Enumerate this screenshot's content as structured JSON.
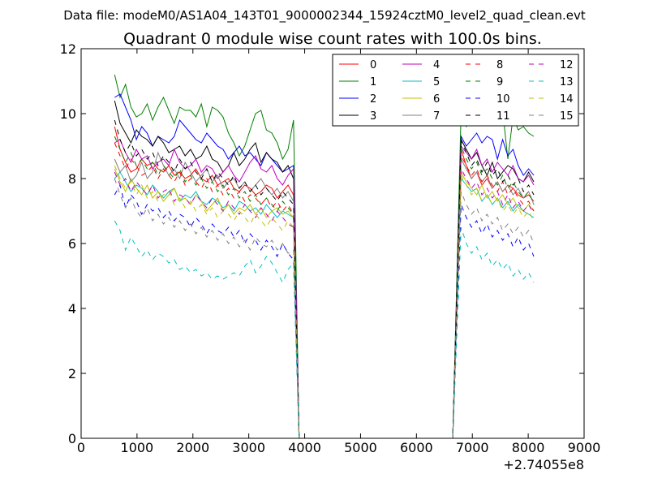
{
  "chart_data": {
    "type": "line",
    "suptitle": "Data file: modeM0/AS1A04_143T01_9000002344_15924cztM0_level2_quad_clean.evt",
    "title": "Quadrant 0 module wise count rates with 100.0s bins.",
    "xlabel": "",
    "ylabel": "",
    "x_offset_label": "+2.74055e8",
    "xlim": [
      0,
      9000
    ],
    "ylim": [
      0,
      12
    ],
    "xticks": [
      0,
      1000,
      2000,
      3000,
      4000,
      5000,
      6000,
      7000,
      8000,
      9000
    ],
    "yticks": [
      0,
      2,
      4,
      6,
      8,
      10,
      12
    ],
    "xtick_labels": [
      "0",
      "1000",
      "2000",
      "3000",
      "4000",
      "5000",
      "6000",
      "7000",
      "8000",
      "9000"
    ],
    "ytick_labels": [
      "0",
      "2",
      "4",
      "6",
      "8",
      "10",
      "12"
    ],
    "legend_position": "top-right",
    "legend_columns": 4,
    "series": [
      {
        "name": "0",
        "color": "#ff0000",
        "dash": "solid",
        "seg1": [
          9.6,
          8.9,
          8.5,
          8.2,
          8.3,
          8.6,
          8.4,
          8.5,
          8.3,
          8.2,
          8.4,
          8.1,
          8.2,
          8.0,
          8.1,
          8.3,
          8.0,
          7.9,
          8.1,
          7.8,
          7.9,
          8.0,
          7.7,
          7.6,
          7.8,
          7.7,
          7.5,
          7.6,
          7.8,
          7.7,
          7.4,
          7.6,
          7.8,
          7.5
        ],
        "seg2": [
          8.9,
          8.4,
          8.0,
          8.2,
          7.8,
          8.0,
          7.7,
          7.9,
          7.6,
          7.8,
          7.7,
          7.5,
          7.4,
          7.5,
          7.3
        ]
      },
      {
        "name": "1",
        "color": "#008000",
        "dash": "solid",
        "seg1": [
          11.2,
          10.5,
          10.9,
          10.2,
          9.9,
          10.0,
          10.3,
          9.8,
          10.2,
          10.5,
          10.1,
          9.7,
          10.2,
          10.1,
          10.1,
          9.9,
          10.3,
          9.6,
          10.2,
          10.1,
          9.9,
          9.4,
          9.1,
          8.7,
          9.0,
          9.5,
          10.0,
          10.1,
          9.5,
          9.4,
          9.1,
          8.6,
          8.9,
          9.8
        ],
        "seg2": [
          10.1,
          9.6,
          9.9,
          10.2,
          9.7,
          10.2,
          10.0,
          10.3,
          10.1,
          8.6,
          9.9,
          9.5,
          9.6,
          9.4,
          9.3
        ]
      },
      {
        "name": "2",
        "color": "#0000ff",
        "dash": "solid",
        "seg1": [
          10.5,
          10.6,
          10.2,
          9.8,
          9.2,
          9.6,
          9.4,
          9.0,
          9.3,
          9.2,
          9.1,
          9.3,
          9.8,
          9.6,
          9.4,
          9.2,
          9.1,
          9.4,
          9.2,
          9.0,
          8.9,
          8.6,
          8.8,
          9.0,
          8.7,
          8.8,
          8.6,
          8.4,
          8.8,
          8.6,
          8.4,
          8.2,
          8.3,
          8.4
        ],
        "seg2": [
          9.3,
          9.0,
          9.2,
          9.4,
          9.1,
          9.3,
          9.2,
          8.6,
          9.2,
          8.7,
          8.9,
          8.4,
          8.1,
          8.3,
          8.1
        ]
      },
      {
        "name": "3",
        "color": "#000000",
        "dash": "solid",
        "seg1": [
          10.4,
          9.7,
          9.4,
          9.1,
          9.5,
          9.3,
          9.2,
          9.0,
          9.3,
          9.1,
          8.8,
          8.9,
          9.0,
          8.7,
          8.9,
          8.6,
          8.7,
          9.0,
          8.6,
          8.5,
          8.2,
          8.4,
          8.8,
          8.4,
          8.6,
          8.9,
          9.1,
          8.5,
          8.8,
          8.6,
          8.5,
          8.2,
          8.4,
          8.0
        ],
        "seg2": [
          9.2,
          8.9,
          8.6,
          8.8,
          8.4,
          8.1,
          8.5,
          8.0,
          8.2,
          8.4,
          8.3,
          8.0,
          7.9,
          8.2,
          7.9
        ]
      },
      {
        "name": "4",
        "color": "#bf00bf",
        "dash": "solid",
        "seg1": [
          9.1,
          9.2,
          8.8,
          8.5,
          8.9,
          8.6,
          8.7,
          8.3,
          8.5,
          8.6,
          8.4,
          8.9,
          8.5,
          8.3,
          8.4,
          8.6,
          8.2,
          8.4,
          8.3,
          8.0,
          8.2,
          8.4,
          8.1,
          7.9,
          8.2,
          8.5,
          8.7,
          8.3,
          8.2,
          8.4,
          8.0,
          7.8,
          8.1,
          8.3
        ],
        "seg2": [
          9.0,
          8.8,
          8.6,
          8.9,
          8.4,
          8.6,
          8.2,
          8.5,
          8.3,
          8.1,
          8.4,
          8.0,
          7.9,
          8.1,
          7.8
        ]
      },
      {
        "name": "5",
        "color": "#00bfbf",
        "dash": "solid",
        "seg1": [
          8.0,
          8.2,
          7.9,
          7.6,
          7.8,
          7.7,
          7.5,
          7.8,
          7.6,
          7.4,
          7.6,
          7.7,
          7.3,
          7.5,
          7.4,
          7.6,
          7.3,
          7.2,
          7.4,
          7.3,
          7.1,
          7.2,
          7.0,
          7.3,
          7.2,
          7.0,
          7.1,
          6.9,
          7.2,
          7.0,
          6.8,
          7.0,
          6.9,
          6.8
        ],
        "seg2": [
          8.0,
          7.8,
          7.6,
          7.7,
          7.3,
          7.5,
          7.2,
          7.4,
          7.1,
          7.3,
          7.0,
          7.2,
          7.0,
          6.9,
          6.8
        ]
      },
      {
        "name": "6",
        "color": "#bfbf00",
        "dash": "solid",
        "seg1": [
          8.3,
          7.9,
          7.6,
          8.0,
          7.7,
          7.5,
          7.8,
          7.4,
          7.6,
          7.3,
          7.5,
          7.7,
          7.3,
          7.4,
          7.2,
          7.5,
          7.3,
          7.0,
          7.2,
          7.4,
          7.0,
          7.2,
          6.9,
          7.1,
          7.0,
          7.2,
          6.9,
          7.1,
          6.8,
          7.0,
          7.1,
          6.9,
          7.0,
          6.8
        ],
        "seg2": [
          8.2,
          7.9,
          7.7,
          7.5,
          7.8,
          7.4,
          7.6,
          7.3,
          7.5,
          7.2,
          7.4,
          7.1,
          7.0,
          7.2,
          7.0
        ]
      },
      {
        "name": "7",
        "color": "#808080",
        "dash": "solid",
        "seg1": [
          8.6,
          8.2,
          8.4,
          7.9,
          8.1,
          8.5,
          8.0,
          8.2,
          8.8,
          8.4,
          8.1,
          8.3,
          8.0,
          8.5,
          8.2,
          7.9,
          8.1,
          8.3,
          7.9,
          8.1,
          7.7,
          7.9,
          8.0,
          7.7,
          7.9,
          7.6,
          7.8,
          8.0,
          7.7,
          7.5,
          7.7,
          7.4,
          7.6,
          7.3
        ],
        "seg2": [
          8.6,
          8.3,
          8.0,
          8.2,
          7.9,
          8.1,
          7.7,
          7.9,
          7.6,
          7.8,
          7.5,
          7.7,
          7.4,
          7.6,
          7.2
        ]
      },
      {
        "name": "8",
        "color": "#ff0000",
        "dash": "dashed",
        "seg1": [
          9.1,
          8.7,
          8.3,
          8.6,
          8.4,
          8.1,
          8.2,
          8.4,
          8.0,
          8.3,
          8.1,
          7.9,
          8.2,
          7.8,
          8.0,
          7.9,
          7.7,
          8.0,
          7.6,
          7.8,
          7.5,
          7.7,
          7.4,
          7.6,
          7.3,
          7.5,
          7.4,
          7.2,
          7.4,
          7.1,
          7.3,
          7.0,
          7.2,
          6.9
        ],
        "seg2": [
          8.7,
          8.4,
          8.1,
          8.3,
          7.9,
          8.1,
          7.8,
          7.6,
          7.9,
          7.5,
          7.7,
          7.4,
          7.2,
          7.3,
          7.0
        ]
      },
      {
        "name": "9",
        "color": "#008000",
        "dash": "dashed",
        "seg1": [
          9.3,
          8.9,
          8.5,
          8.8,
          8.4,
          8.6,
          8.3,
          8.5,
          8.1,
          8.4,
          8.2,
          8.0,
          8.3,
          7.9,
          8.1,
          7.8,
          8.0,
          7.7,
          7.9,
          7.6,
          7.8,
          7.5,
          7.7,
          7.4,
          7.6,
          7.3,
          7.5,
          7.2,
          7.4,
          7.2,
          7.0,
          7.3,
          7.1,
          6.9
        ],
        "seg2": [
          9.0,
          8.6,
          8.3,
          8.5,
          8.1,
          8.3,
          8.0,
          7.8,
          8.1,
          7.7,
          7.9,
          7.6,
          7.4,
          7.6,
          7.2
        ]
      },
      {
        "name": "10",
        "color": "#0000ff",
        "dash": "dashed",
        "seg1": [
          7.5,
          7.8,
          7.1,
          7.5,
          7.3,
          6.9,
          7.2,
          7.0,
          7.1,
          6.8,
          7.0,
          6.7,
          6.9,
          6.8,
          6.5,
          6.8,
          6.6,
          6.3,
          6.6,
          6.4,
          6.3,
          6.5,
          6.2,
          6.4,
          6.0,
          6.3,
          6.1,
          5.8,
          6.1,
          5.9,
          5.6,
          6.0,
          5.7,
          5.5
        ],
        "seg2": [
          7.2,
          6.8,
          6.5,
          6.7,
          6.3,
          6.6,
          6.2,
          6.4,
          6.1,
          6.3,
          5.9,
          6.2,
          5.8,
          6.0,
          5.6
        ]
      },
      {
        "name": "11",
        "color": "#000000",
        "dash": "dashed",
        "seg1": [
          9.8,
          9.2,
          8.8,
          9.1,
          8.7,
          8.9,
          8.6,
          8.8,
          8.4,
          8.7,
          8.5,
          8.2,
          8.6,
          8.3,
          8.5,
          8.2,
          8.0,
          8.3,
          7.9,
          8.2,
          8.0,
          7.8,
          8.1,
          7.7,
          7.9,
          7.6,
          7.8,
          7.5,
          7.7,
          7.5,
          7.3,
          7.6,
          7.4,
          7.2
        ],
        "seg2": [
          9.2,
          8.8,
          8.4,
          8.6,
          8.2,
          8.5,
          8.1,
          8.3,
          7.9,
          8.1,
          7.8,
          8.0,
          7.6,
          7.8,
          7.5
        ]
      },
      {
        "name": "12",
        "color": "#bf00bf",
        "dash": "dashed",
        "seg1": [
          8.2,
          7.8,
          8.0,
          7.6,
          7.9,
          7.7,
          7.5,
          7.8,
          7.4,
          7.6,
          7.7,
          7.3,
          7.5,
          7.4,
          7.2,
          7.5,
          7.3,
          7.1,
          7.4,
          7.2,
          7.0,
          7.3,
          7.1,
          6.9,
          7.2,
          7.0,
          6.8,
          7.1,
          6.9,
          6.7,
          7.0,
          6.8,
          6.6,
          6.5
        ],
        "seg2": [
          8.3,
          8.0,
          7.7,
          7.9,
          7.5,
          7.7,
          7.4,
          7.6,
          7.2,
          7.5,
          7.1,
          7.3,
          7.0,
          7.2,
          6.9
        ]
      },
      {
        "name": "13",
        "color": "#00bfbf",
        "dash": "dashed",
        "seg1": [
          6.7,
          6.4,
          5.8,
          6.2,
          5.9,
          5.6,
          5.8,
          5.5,
          5.7,
          5.6,
          5.4,
          5.5,
          5.2,
          5.3,
          5.1,
          5.2,
          5.0,
          5.1,
          4.9,
          5.0,
          4.9,
          5.0,
          5.1,
          5.0,
          5.3,
          5.5,
          5.1,
          5.3,
          5.6,
          5.4,
          5.1,
          4.8,
          5.2,
          5.4
        ],
        "seg2": [
          6.5,
          6.0,
          5.7,
          5.9,
          5.5,
          5.7,
          5.3,
          5.5,
          5.2,
          5.4,
          5.0,
          5.2,
          4.9,
          5.1,
          4.8
        ]
      },
      {
        "name": "14",
        "color": "#bfbf00",
        "dash": "dashed",
        "seg1": [
          8.4,
          8.0,
          7.7,
          7.9,
          7.5,
          7.8,
          7.4,
          7.6,
          7.3,
          7.5,
          7.6,
          7.2,
          7.4,
          7.1,
          7.3,
          7.0,
          7.2,
          6.9,
          7.1,
          6.8,
          7.0,
          6.9,
          6.7,
          7.0,
          6.8,
          6.6,
          6.9,
          6.7,
          6.5,
          6.8,
          6.6,
          6.4,
          6.7,
          6.5
        ],
        "seg2": [
          8.1,
          7.8,
          7.5,
          7.7,
          7.3,
          7.5,
          7.2,
          7.4,
          7.0,
          7.2,
          6.9,
          7.1,
          6.8,
          7.0,
          6.7
        ]
      },
      {
        "name": "15",
        "color": "#808080",
        "dash": "dashed",
        "seg1": [
          8.0,
          7.5,
          7.1,
          7.4,
          7.0,
          6.8,
          7.1,
          6.7,
          6.9,
          6.6,
          6.8,
          6.5,
          6.7,
          6.4,
          6.6,
          6.3,
          6.5,
          6.2,
          6.4,
          6.1,
          6.3,
          6.0,
          6.2,
          5.9,
          6.1,
          5.8,
          6.2,
          6.0,
          5.9,
          6.1,
          5.8,
          6.0,
          5.7,
          5.8
        ],
        "seg2": [
          7.6,
          7.2,
          6.9,
          7.1,
          6.7,
          6.9,
          6.6,
          6.8,
          6.4,
          6.6,
          6.3,
          6.5,
          6.2,
          6.4,
          6.0
        ]
      }
    ]
  }
}
